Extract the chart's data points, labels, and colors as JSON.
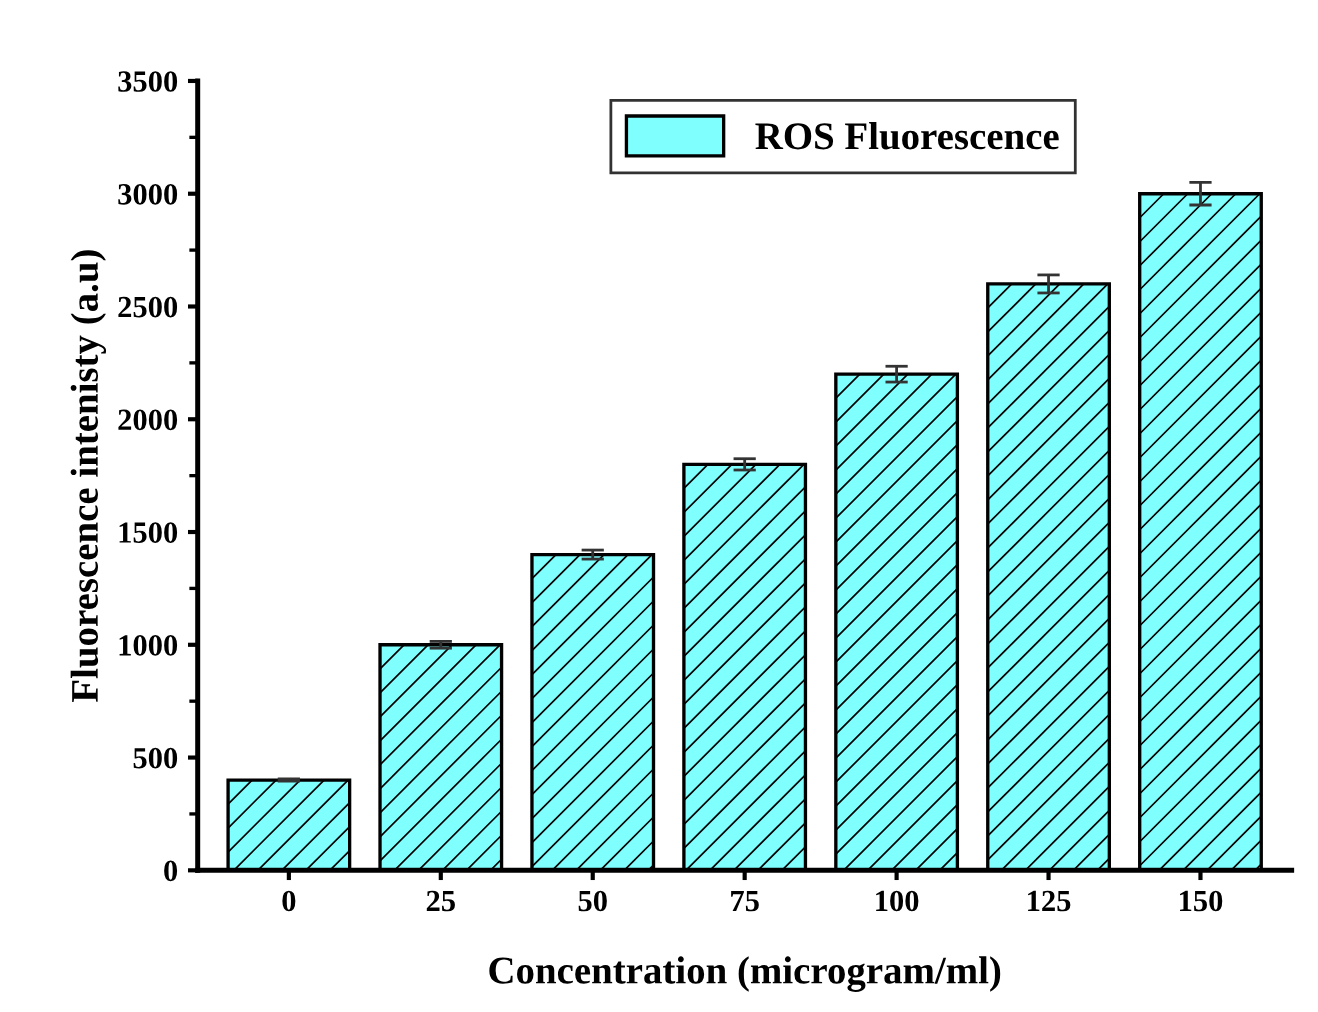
{
  "chart_data": {
    "type": "bar",
    "xlabel": "Concentration (microgram/ml)",
    "ylabel": "Fluorescence intenisty (a.u)",
    "categories": [
      "0",
      "25",
      "50",
      "75",
      "100",
      "125",
      "150"
    ],
    "series": [
      {
        "name": "ROS Fluorescence",
        "color": "#80ffff",
        "values": [
          400,
          1000,
          1400,
          1800,
          2200,
          2600,
          3000
        ],
        "errors": [
          5,
          15,
          20,
          25,
          35,
          40,
          50
        ]
      }
    ],
    "ylim": [
      0,
      3500
    ],
    "yticks": [
      0,
      500,
      1000,
      1500,
      2000,
      2500,
      3000,
      3500
    ],
    "grid": false,
    "legend": "top right"
  }
}
